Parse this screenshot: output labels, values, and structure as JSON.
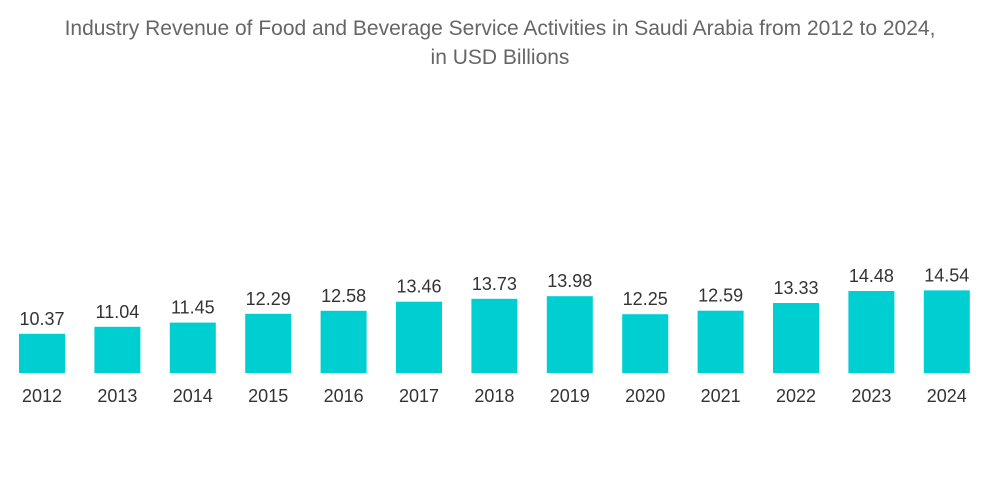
{
  "chart_data": {
    "type": "bar",
    "title": "Industry Revenue of Food and Beverage Service Activities in Saudi Arabia from 2012 to 2024,",
    "subtitle": "in USD Billions",
    "categories": [
      "2012",
      "2013",
      "2014",
      "2015",
      "2016",
      "2017",
      "2018",
      "2019",
      "2020",
      "2021",
      "2022",
      "2023",
      "2024"
    ],
    "values": [
      10.37,
      11.04,
      11.45,
      12.29,
      12.58,
      13.46,
      13.73,
      13.98,
      12.25,
      12.59,
      13.33,
      14.48,
      14.54
    ],
    "value_labels": [
      "10.37",
      "11.04",
      "11.45",
      "12.29",
      "12.58",
      "13.46",
      "13.73",
      "13.98",
      "12.25",
      "12.59",
      "13.33",
      "14.48",
      "14.54"
    ],
    "xlabel": "",
    "ylabel": "",
    "grid": false,
    "legend": "none",
    "bar_color": "#00cfd1"
  }
}
